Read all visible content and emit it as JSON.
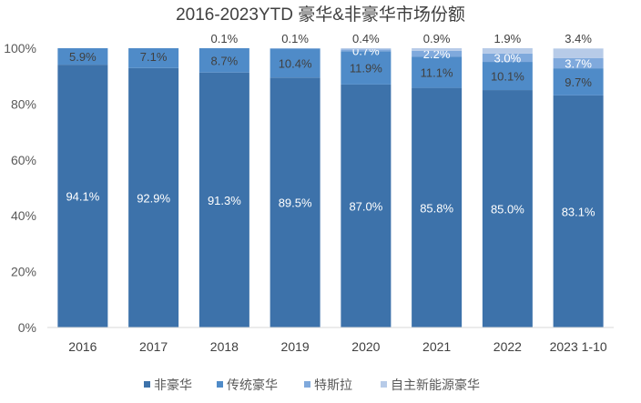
{
  "chart_data": {
    "type": "bar",
    "stacked": true,
    "title": "2016-2023YTD 豪华&非豪华市场份额",
    "xlabel": "",
    "ylabel": "",
    "ylim": [
      0,
      100
    ],
    "yticks": [
      "0%",
      "20%",
      "40%",
      "60%",
      "80%",
      "100%"
    ],
    "grid": false,
    "legend_position": "bottom",
    "categories": [
      "2016",
      "2017",
      "2018",
      "2019",
      "2020",
      "2021",
      "2022",
      "2023 1-10"
    ],
    "series": [
      {
        "name": "非豪华",
        "color": "#3d72aa",
        "label_color": "#ffffff",
        "values": [
          94.1,
          92.9,
          91.3,
          89.5,
          87.0,
          85.8,
          85.0,
          83.1
        ],
        "labels": [
          "94.1%",
          "92.9%",
          "91.3%",
          "89.5%",
          "87.0%",
          "85.8%",
          "85.0%",
          "83.1%"
        ]
      },
      {
        "name": "传统豪华",
        "color": "#4f8bc8",
        "label_color": "#404040",
        "values": [
          5.9,
          7.1,
          8.7,
          10.4,
          11.9,
          11.1,
          10.1,
          9.7
        ],
        "labels": [
          "5.9%",
          "7.1%",
          "8.7%",
          "10.4%",
          "11.9%",
          "11.1%",
          "10.1%",
          "9.7%"
        ]
      },
      {
        "name": "特斯拉",
        "color": "#7fa9dc",
        "label_color": "#ffffff",
        "values": [
          null,
          null,
          null,
          null,
          0.7,
          2.2,
          3.0,
          3.7
        ],
        "labels": [
          "",
          "",
          "",
          "",
          "0.7%",
          "2.2%",
          "3.0%",
          "3.7%"
        ]
      },
      {
        "name": "自主新能源豪华",
        "color": "#b7cbe8",
        "label_color": "#404040",
        "values": [
          null,
          null,
          0.1,
          0.1,
          0.4,
          0.9,
          1.9,
          3.4
        ],
        "labels": [
          "",
          "",
          "0.1%",
          "0.1%",
          "0.4%",
          "0.9%",
          "1.9%",
          "3.4%"
        ]
      }
    ]
  }
}
